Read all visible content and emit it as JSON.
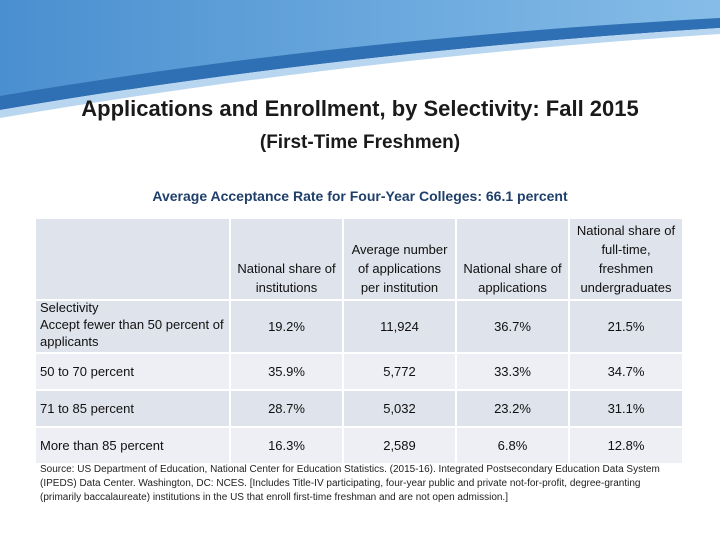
{
  "title": "Applications and Enrollment, by Selectivity: Fall 2015",
  "subtitle": "(First-Time Freshmen)",
  "acceptance_rate": "Average Acceptance Rate for Four-Year Colleges: 66.1 percent",
  "table": {
    "headers": [
      "National share of institutions",
      "Average number of applications per institution",
      "National share of applications",
      "National share of full-time, freshmen undergraduates"
    ],
    "selectivity_label": "Selectivity",
    "rows": [
      {
        "label": "Accept fewer than 50 percent of applicants",
        "values": [
          "19.2%",
          "11,924",
          "36.7%",
          "21.5%"
        ]
      },
      {
        "label": "50 to 70 percent",
        "values": [
          "35.9%",
          "5,772",
          "33.3%",
          "34.7%"
        ]
      },
      {
        "label": "71 to 85 percent",
        "values": [
          "28.7%",
          "5,032",
          "23.2%",
          "31.1%"
        ]
      },
      {
        "label": "More than 85 percent",
        "values": [
          "16.3%",
          "2,589",
          "6.8%",
          "12.8%"
        ]
      }
    ]
  },
  "source": "Source: US Department of Education, National Center for Education Statistics. (2015-16). Integrated Postsecondary Education Data System (IPEDS) Data Center. Washington, DC: NCES. [Includes Title-IV participating, four-year public and private not-for-profit, degree-granting (primarily baccalaureate) institutions in the US that enroll first-time freshman and are not open admission.]",
  "colors": {
    "banner_dark": "#2f6fb3",
    "banner_light": "#6aa8dc",
    "header_bg": "#dfe3ec",
    "row_alt_bg": "#edeff5",
    "rate_text": "#1f3f6b"
  }
}
